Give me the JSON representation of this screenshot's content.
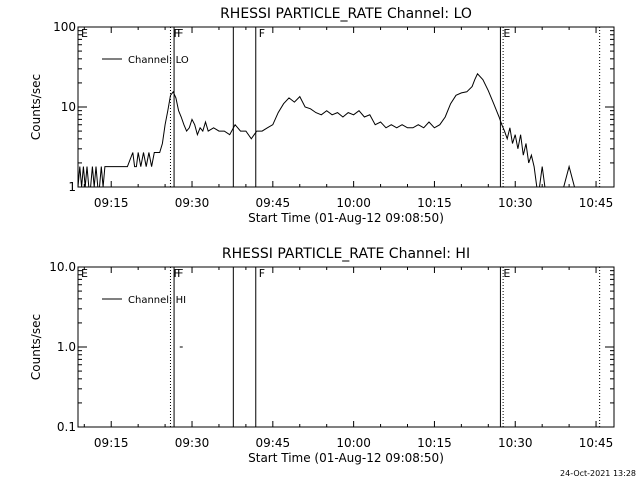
{
  "footer_stamp": "24-Oct-2021 13:28",
  "chart_data": [
    {
      "type": "line",
      "title": "RHESSI PARTICLE_RATE Channel: LO",
      "xlabel": "Start Time (01-Aug-12 09:08:50)",
      "ylabel": "Counts/sec",
      "yscale": "log",
      "ylim": [
        1,
        100
      ],
      "xlim": [
        "09:08:50",
        "10:48:20"
      ],
      "x_ticks": [
        "09:15",
        "09:30",
        "09:45",
        "10:00",
        "10:15",
        "10:30",
        "10:45"
      ],
      "y_ticks": [
        "1",
        "10",
        "100"
      ],
      "legend": "top-left",
      "grid": false,
      "series": [
        {
          "name": "Channel: LO",
          "x": [
            "09:08:50",
            "09:09:10",
            "09:09:30",
            "09:09:50",
            "09:10:10",
            "09:10:30",
            "09:10:50",
            "09:11:10",
            "09:11:30",
            "09:11:50",
            "09:12:10",
            "09:12:30",
            "09:12:50",
            "09:13:10",
            "09:13:30",
            "09:13:50",
            "09:14:10",
            "09:14:30",
            "09:15:00",
            "09:16:00",
            "09:17:00",
            "09:18:00",
            "09:19:00",
            "09:19:20",
            "09:19:40",
            "09:20:00",
            "09:20:30",
            "09:21:00",
            "09:21:30",
            "09:22:00",
            "09:22:30",
            "09:23:00",
            "09:23:30",
            "09:24:00",
            "09:24:30",
            "09:25:00",
            "09:25:30",
            "09:26:00",
            "09:26:30",
            "09:27:00",
            "09:27:30",
            "09:28:00",
            "09:28:30",
            "09:29:00",
            "09:29:30",
            "09:30:00",
            "09:30:30",
            "09:31:00",
            "09:31:30",
            "09:32:00",
            "09:32:30",
            "09:33:00",
            "09:34:00",
            "09:35:00",
            "09:36:00",
            "09:37:00",
            "09:38:00",
            "09:39:00",
            "09:40:00",
            "09:41:00",
            "09:42:00",
            "09:43:00",
            "09:44:00",
            "09:45:00",
            "09:46:00",
            "09:47:00",
            "09:48:00",
            "09:49:00",
            "09:50:00",
            "09:51:00",
            "09:52:00",
            "09:53:00",
            "09:54:00",
            "09:55:00",
            "09:56:00",
            "09:57:00",
            "09:58:00",
            "09:59:00",
            "10:00:00",
            "10:01:00",
            "10:02:00",
            "10:03:00",
            "10:04:00",
            "10:05:00",
            "10:06:00",
            "10:07:00",
            "10:08:00",
            "10:09:00",
            "10:10:00",
            "10:11:00",
            "10:12:00",
            "10:13:00",
            "10:14:00",
            "10:15:00",
            "10:16:00",
            "10:17:00",
            "10:18:00",
            "10:19:00",
            "10:20:00",
            "10:21:00",
            "10:22:00",
            "10:22:30",
            "10:23:00",
            "10:24:00",
            "10:25:00",
            "10:26:00",
            "10:27:00",
            "10:27:30",
            "10:28:00",
            "10:28:30",
            "10:29:00",
            "10:29:30",
            "10:30:00",
            "10:30:30",
            "10:31:00",
            "10:31:30",
            "10:32:00",
            "10:32:30",
            "10:33:00",
            "10:33:30",
            "10:34:00",
            "10:34:30",
            "10:35:00",
            "10:35:30",
            "10:36:00",
            "10:37:00",
            "10:38:00",
            "10:39:00",
            "10:40:00",
            "10:41:00",
            "10:42:00",
            "10:43:00"
          ],
          "values": [
            1.0,
            1.8,
            1.0,
            1.8,
            1.0,
            1.8,
            1.0,
            1.0,
            1.8,
            1.0,
            1.8,
            1.0,
            1.0,
            1.8,
            1.0,
            1.8,
            1.8,
            1.8,
            1.8,
            1.8,
            1.8,
            1.8,
            2.7,
            1.8,
            1.8,
            2.7,
            1.8,
            2.7,
            1.8,
            2.7,
            1.8,
            2.7,
            2.7,
            2.7,
            3.5,
            6.0,
            9.0,
            14.0,
            15.5,
            13.0,
            9.0,
            7.5,
            6.0,
            5.0,
            5.5,
            7.0,
            6.0,
            4.5,
            5.5,
            5.0,
            6.5,
            5.0,
            5.5,
            5.0,
            5.0,
            4.5,
            6.0,
            5.0,
            5.0,
            4.0,
            5.0,
            5.0,
            5.5,
            6.0,
            8.5,
            11.0,
            13.0,
            11.5,
            13.5,
            10.0,
            9.5,
            8.5,
            8.0,
            9.0,
            8.0,
            8.5,
            7.5,
            8.5,
            8.0,
            9.0,
            7.5,
            8.0,
            6.0,
            6.5,
            5.5,
            6.0,
            5.5,
            6.0,
            5.5,
            5.5,
            6.0,
            5.5,
            6.5,
            5.5,
            6.0,
            7.5,
            11.0,
            14.0,
            15.0,
            15.5,
            18.0,
            22.0,
            26.0,
            22.0,
            16.0,
            11.0,
            7.5,
            6.0,
            5.0,
            4.0,
            5.5,
            3.5,
            4.5,
            3.0,
            4.5,
            2.5,
            3.5,
            2.0,
            2.5,
            1.8,
            1.0,
            1.0,
            1.8,
            1.0,
            1.0,
            1.0,
            1.0,
            1.0,
            1.8,
            1.0,
            1.0,
            1.0
          ]
        }
      ],
      "annotations": [
        {
          "label": "E",
          "time": "09:08:50",
          "style": "marker"
        },
        {
          "label": "F",
          "time": "09:26:00",
          "style": "dotted"
        },
        {
          "label": "F",
          "time": "09:26:40",
          "style": "solid"
        },
        {
          "time": "09:37:40",
          "style": "solid"
        },
        {
          "label": "F",
          "time": "09:41:50",
          "style": "solid"
        },
        {
          "label": "E",
          "time": "10:27:15",
          "style": "solid"
        },
        {
          "time": "10:27:45",
          "style": "dotted"
        },
        {
          "time": "10:45:40",
          "style": "dotted"
        }
      ]
    },
    {
      "type": "line",
      "title": "RHESSI PARTICLE_RATE Channel: HI",
      "xlabel": "Start Time (01-Aug-12 09:08:50)",
      "ylabel": "Counts/sec",
      "yscale": "log",
      "ylim": [
        0.1,
        10
      ],
      "xlim": [
        "09:08:50",
        "10:48:20"
      ],
      "x_ticks": [
        "09:15",
        "09:30",
        "09:45",
        "10:00",
        "10:15",
        "10:30",
        "10:45"
      ],
      "y_ticks": [
        "0.1",
        "1.0",
        "10.0"
      ],
      "legend": "top-left",
      "grid": false,
      "series": [
        {
          "name": "Channel: HI",
          "x": [
            "09:28:00"
          ],
          "values": [
            1.0
          ]
        }
      ],
      "annotations": [
        {
          "label": "E",
          "time": "09:08:50",
          "style": "marker"
        },
        {
          "label": "F",
          "time": "09:26:00",
          "style": "dotted"
        },
        {
          "label": "F",
          "time": "09:26:40",
          "style": "solid"
        },
        {
          "time": "09:37:40",
          "style": "solid"
        },
        {
          "label": "F",
          "time": "09:41:50",
          "style": "solid"
        },
        {
          "label": "E",
          "time": "10:27:15",
          "style": "solid"
        },
        {
          "time": "10:27:45",
          "style": "dotted"
        },
        {
          "time": "10:45:40",
          "style": "dotted"
        }
      ]
    }
  ]
}
